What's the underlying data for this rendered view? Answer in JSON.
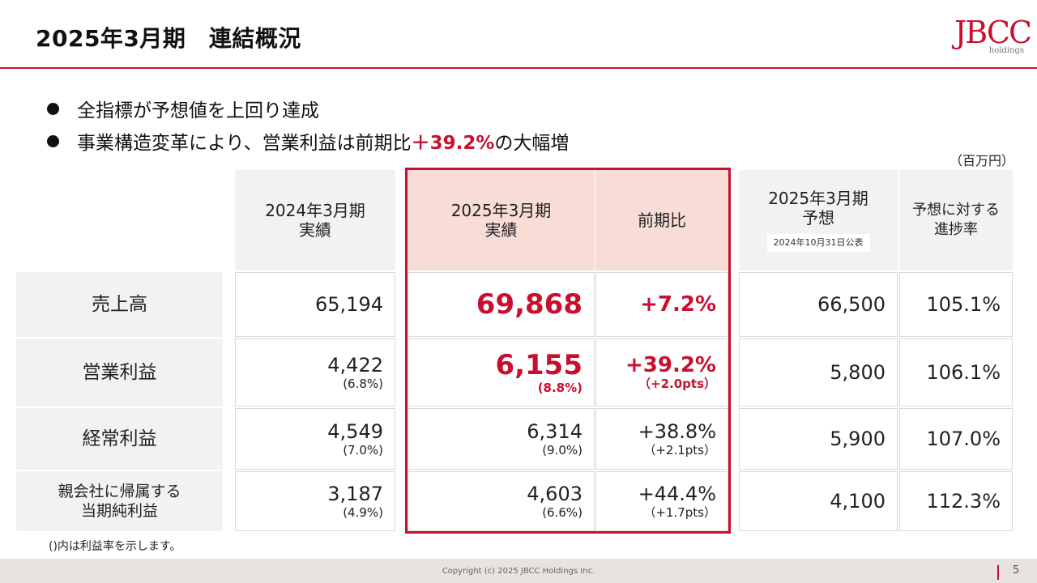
{
  "header": {
    "title": "2025年3月期　連結概況",
    "logo_mark": "JBCC",
    "logo_sub": "holdings"
  },
  "bullets": [
    {
      "text": "全指標が予想値を上回り達成"
    },
    {
      "text_before": "事業構造変革により、営業利益は前期比",
      "highlight": "＋39.2%",
      "text_after": "の大幅増"
    }
  ],
  "unit": "（百万円）",
  "table": {
    "columns": {
      "prev": {
        "line1": "2024年3月期",
        "line2": "実績"
      },
      "curr": {
        "line1": "2025年3月期",
        "line2": "実績"
      },
      "yoy": {
        "label": "前期比"
      },
      "forecast": {
        "line1": "2025年3月期",
        "line2": "予想",
        "badge": "2024年10月31日公表"
      },
      "progress": {
        "line1": "予想に対する",
        "line2": "進捗率"
      }
    },
    "rows": [
      {
        "label": "売上高",
        "prev": "65,194",
        "prev_sub": "",
        "curr": "69,868",
        "curr_sub": "",
        "yoy": "+7.2%",
        "yoy_sub": "",
        "forecast": "66,500",
        "progress": "105.1%"
      },
      {
        "label": "営業利益",
        "prev": "4,422",
        "prev_sub": "(6.8%)",
        "curr": "6,155",
        "curr_sub": "(8.8%)",
        "yoy": "+39.2%",
        "yoy_sub": "（+2.0pts）",
        "forecast": "5,800",
        "progress": "106.1%"
      },
      {
        "label": "経常利益",
        "prev": "4,549",
        "prev_sub": "(7.0%)",
        "curr": "6,314",
        "curr_sub": "(9.0%)",
        "yoy": "+38.8%",
        "yoy_sub": "（+2.1pts）",
        "forecast": "5,900",
        "progress": "107.0%"
      },
      {
        "label_line1": "親会社に帰属する",
        "label_line2": "当期純利益",
        "prev": "3,187",
        "prev_sub": "(4.9%)",
        "curr": "4,603",
        "curr_sub": "(6.6%)",
        "yoy": "+44.4%",
        "yoy_sub": "（+1.7pts）",
        "forecast": "4,100",
        "progress": "112.3%"
      }
    ]
  },
  "note": "()内は利益率を示します。",
  "footer": {
    "copyright": "Copyright (c) 2025 JBCC Holdings Inc.",
    "page": "5"
  },
  "colors": {
    "accent": "#c8102e",
    "header_gray": "#f2f2f2",
    "header_pink": "#f8dcd6"
  }
}
